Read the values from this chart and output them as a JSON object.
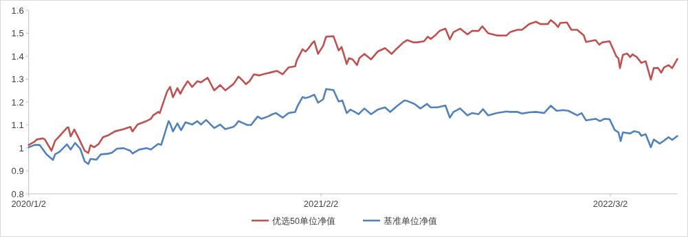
{
  "chart_data": {
    "type": "line",
    "legend": "bottom",
    "xlim": [
      "2020-01-02",
      "2022-06-01"
    ],
    "xticks": [
      {
        "value": "2020-01-02",
        "label": "2020/1/2"
      },
      {
        "value": "2021-02-02",
        "label": "2021/2/2"
      },
      {
        "value": "2022-03-02",
        "label": "2022/3/2"
      }
    ],
    "ylim": [
      0.8,
      1.6
    ],
    "yticks": [
      0.8,
      0.9,
      1,
      1.1,
      1.2,
      1.3,
      1.4,
      1.5,
      1.6
    ],
    "series": [
      {
        "name": "优选50单位净值",
        "color": "#c0504d",
        "x": [
          "2020-01-02",
          "2020-01-10",
          "2020-01-13",
          "2020-01-21",
          "2020-01-24",
          "2020-02-02",
          "2020-02-07",
          "2020-02-13",
          "2020-02-23",
          "2020-02-25",
          "2020-02-28",
          "2020-03-04",
          "2020-03-10",
          "2020-03-18",
          "2020-03-23",
          "2020-03-26",
          "2020-03-31",
          "2020-04-06",
          "2020-04-12",
          "2020-04-19",
          "2020-04-28",
          "2020-05-10",
          "2020-05-19",
          "2020-05-22",
          "2020-05-29",
          "2020-06-10",
          "2020-06-16",
          "2020-06-19",
          "2020-06-26",
          "2020-06-28",
          "2020-07-08",
          "2020-07-12",
          "2020-07-16",
          "2020-07-22",
          "2020-07-26",
          "2020-07-30",
          "2020-08-05",
          "2020-08-11",
          "2020-08-18",
          "2020-08-23",
          "2020-09-01",
          "2020-09-10",
          "2020-09-18",
          "2020-09-25",
          "2020-10-06",
          "2020-10-09",
          "2020-10-13",
          "2020-10-18",
          "2020-10-23",
          "2020-10-28",
          "2020-11-03",
          "2020-11-10",
          "2020-11-15",
          "2020-11-22",
          "2020-11-28",
          "2020-12-04",
          "2020-12-12",
          "2020-12-20",
          "2020-12-29",
          "2020-12-31",
          "2021-01-08",
          "2021-01-12",
          "2021-01-15",
          "2021-01-22",
          "2021-01-24",
          "2021-01-29",
          "2021-02-05",
          "2021-02-09",
          "2021-02-19",
          "2021-02-26",
          "2021-03-02",
          "2021-03-09",
          "2021-03-12",
          "2021-03-17",
          "2021-03-23",
          "2021-03-26",
          "2021-04-02",
          "2021-04-11",
          "2021-04-20",
          "2021-04-30",
          "2021-05-09",
          "2021-05-15",
          "2021-05-25",
          "2021-05-30",
          "2021-06-08",
          "2021-06-12",
          "2021-06-22",
          "2021-06-27",
          "2021-07-01",
          "2021-07-07",
          "2021-07-13",
          "2021-07-21",
          "2021-07-27",
          "2021-08-01",
          "2021-08-10",
          "2021-08-20",
          "2021-08-26",
          "2021-09-04",
          "2021-09-09",
          "2021-09-17",
          "2021-09-29",
          "2021-10-12",
          "2021-10-17",
          "2021-10-27",
          "2021-11-02",
          "2021-11-12",
          "2021-11-21",
          "2021-11-27",
          "2021-12-07",
          "2021-12-11",
          "2021-12-16",
          "2021-12-21",
          "2021-12-24",
          "2022-01-02",
          "2022-01-08",
          "2022-01-16",
          "2022-01-25",
          "2022-01-28",
          "2022-02-10",
          "2022-02-15",
          "2022-02-19",
          "2022-03-01",
          "2022-03-10",
          "2022-03-13",
          "2022-03-15",
          "2022-03-19",
          "2022-03-25",
          "2022-03-29",
          "2022-04-01",
          "2022-04-07",
          "2022-04-13",
          "2022-04-19",
          "2022-04-26",
          "2022-04-30",
          "2022-05-06",
          "2022-05-10",
          "2022-05-14",
          "2022-05-20",
          "2022-05-25",
          "2022-06-01"
        ],
        "values": [
          1.013,
          1.027,
          1.037,
          1.042,
          1.037,
          0.988,
          1.032,
          1.052,
          1.088,
          1.09,
          1.05,
          1.08,
          1.042,
          0.988,
          0.978,
          1.012,
          1.003,
          1.017,
          1.047,
          1.055,
          1.072,
          1.082,
          1.092,
          1.072,
          1.102,
          1.117,
          1.127,
          1.142,
          1.157,
          1.152,
          1.246,
          1.266,
          1.221,
          1.261,
          1.236,
          1.261,
          1.291,
          1.266,
          1.291,
          1.286,
          1.306,
          1.251,
          1.274,
          1.251,
          1.278,
          1.292,
          1.311,
          1.296,
          1.278,
          1.291,
          1.321,
          1.316,
          1.321,
          1.326,
          1.331,
          1.336,
          1.321,
          1.351,
          1.356,
          1.381,
          1.43,
          1.42,
          1.43,
          1.46,
          1.465,
          1.41,
          1.445,
          1.485,
          1.487,
          1.425,
          1.44,
          1.366,
          1.391,
          1.386,
          1.361,
          1.391,
          1.41,
          1.386,
          1.42,
          1.435,
          1.41,
          1.43,
          1.46,
          1.47,
          1.46,
          1.46,
          1.465,
          1.485,
          1.475,
          1.49,
          1.51,
          1.52,
          1.473,
          1.505,
          1.52,
          1.495,
          1.51,
          1.51,
          1.53,
          1.5,
          1.49,
          1.49,
          1.505,
          1.515,
          1.515,
          1.54,
          1.55,
          1.54,
          1.54,
          1.557,
          1.545,
          1.527,
          1.545,
          1.547,
          1.515,
          1.515,
          1.49,
          1.462,
          1.47,
          1.45,
          1.46,
          1.465,
          1.4,
          1.39,
          1.348,
          1.406,
          1.411,
          1.396,
          1.408,
          1.396,
          1.371,
          1.378,
          1.298,
          1.348,
          1.348,
          1.328,
          1.351,
          1.361,
          1.348,
          1.388
        ]
      },
      {
        "name": "基准单位净值",
        "color": "#4f81bd",
        "x": [
          "2020-01-02",
          "2020-01-10",
          "2020-01-17",
          "2020-01-26",
          "2020-02-04",
          "2020-02-07",
          "2020-02-13",
          "2020-02-23",
          "2020-02-28",
          "2020-03-05",
          "2020-03-12",
          "2020-03-18",
          "2020-03-23",
          "2020-03-26",
          "2020-04-03",
          "2020-04-09",
          "2020-04-19",
          "2020-04-24",
          "2020-05-01",
          "2020-05-10",
          "2020-05-19",
          "2020-05-22",
          "2020-05-31",
          "2020-06-10",
          "2020-06-16",
          "2020-06-26",
          "2020-06-30",
          "2020-07-10",
          "2020-07-12",
          "2020-07-16",
          "2020-07-22",
          "2020-07-27",
          "2020-08-02",
          "2020-08-11",
          "2020-08-18",
          "2020-08-23",
          "2020-08-30",
          "2020-09-10",
          "2020-09-18",
          "2020-09-25",
          "2020-10-06",
          "2020-10-09",
          "2020-10-13",
          "2020-10-20",
          "2020-10-25",
          "2020-10-30",
          "2020-11-08",
          "2020-11-13",
          "2020-11-22",
          "2020-11-28",
          "2020-12-03",
          "2020-12-12",
          "2020-12-20",
          "2020-12-29",
          "2021-01-01",
          "2021-01-08",
          "2021-01-12",
          "2021-01-17",
          "2021-01-24",
          "2021-01-29",
          "2021-02-05",
          "2021-02-09",
          "2021-02-19",
          "2021-02-26",
          "2021-03-03",
          "2021-03-09",
          "2021-03-14",
          "2021-03-20",
          "2021-03-25",
          "2021-04-02",
          "2021-04-11",
          "2021-04-20",
          "2021-04-30",
          "2021-05-07",
          "2021-05-16",
          "2021-05-26",
          "2021-05-30",
          "2021-06-09",
          "2021-06-17",
          "2021-06-26",
          "2021-07-01",
          "2021-07-10",
          "2021-07-21",
          "2021-07-27",
          "2021-08-01",
          "2021-08-10",
          "2021-08-20",
          "2021-08-26",
          "2021-09-04",
          "2021-09-10",
          "2021-09-17",
          "2021-09-29",
          "2021-10-12",
          "2021-10-17",
          "2021-10-27",
          "2021-11-02",
          "2021-11-12",
          "2021-11-21",
          "2021-12-02",
          "2021-12-11",
          "2021-12-19",
          "2021-12-28",
          "2022-01-04",
          "2022-01-16",
          "2022-01-22",
          "2022-01-28",
          "2022-02-10",
          "2022-02-16",
          "2022-02-22",
          "2022-03-01",
          "2022-03-08",
          "2022-03-13",
          "2022-03-16",
          "2022-03-19",
          "2022-03-29",
          "2022-04-03",
          "2022-04-10",
          "2022-04-13",
          "2022-04-19",
          "2022-04-26",
          "2022-04-30",
          "2022-05-08",
          "2022-05-14",
          "2022-05-20",
          "2022-05-25",
          "2022-06-01"
        ],
        "values": [
          1.003,
          1.013,
          1.013,
          0.973,
          0.948,
          0.973,
          0.983,
          1.016,
          0.993,
          1.022,
          0.997,
          0.942,
          0.93,
          0.952,
          0.949,
          0.972,
          0.975,
          0.979,
          0.997,
          0.999,
          0.988,
          0.976,
          0.993,
          0.999,
          0.993,
          1.018,
          1.013,
          1.117,
          1.107,
          1.072,
          1.107,
          1.077,
          1.112,
          1.102,
          1.117,
          1.102,
          1.122,
          1.087,
          1.102,
          1.082,
          1.092,
          1.1,
          1.117,
          1.107,
          1.1,
          1.1,
          1.137,
          1.127,
          1.137,
          1.147,
          1.152,
          1.132,
          1.152,
          1.157,
          1.182,
          1.222,
          1.217,
          1.222,
          1.232,
          1.197,
          1.212,
          1.257,
          1.252,
          1.202,
          1.207,
          1.152,
          1.167,
          1.157,
          1.147,
          1.172,
          1.147,
          1.167,
          1.177,
          1.157,
          1.182,
          1.207,
          1.205,
          1.192,
          1.172,
          1.192,
          1.177,
          1.177,
          1.185,
          1.132,
          1.157,
          1.172,
          1.142,
          1.152,
          1.147,
          1.169,
          1.142,
          1.152,
          1.159,
          1.157,
          1.157,
          1.15,
          1.155,
          1.157,
          1.152,
          1.184,
          1.162,
          1.165,
          1.162,
          1.142,
          1.152,
          1.12,
          1.127,
          1.117,
          1.127,
          1.125,
          1.078,
          1.068,
          1.03,
          1.068,
          1.063,
          1.073,
          1.068,
          1.053,
          1.06,
          1.003,
          1.037,
          1.019,
          1.032,
          1.047,
          1.035,
          1.052
        ]
      }
    ]
  }
}
